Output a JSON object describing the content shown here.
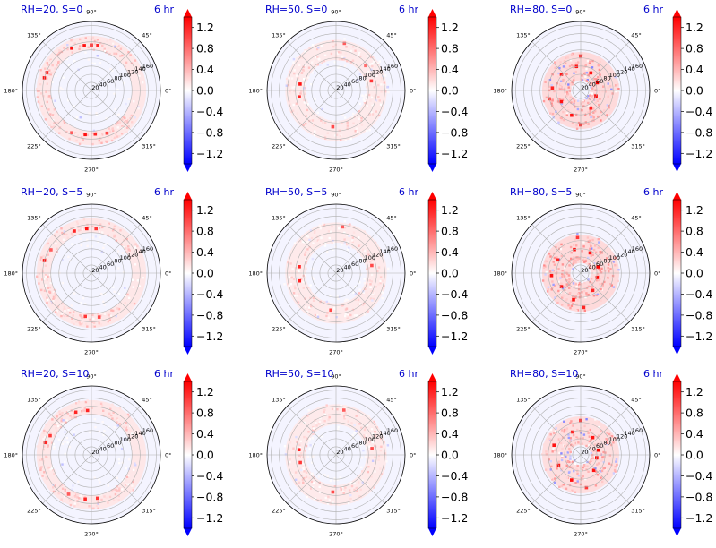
{
  "colors": {
    "cmap": "bwr",
    "negative": "#0000ff",
    "zero": "#ffffff",
    "positive": "#ff0000",
    "title": "#0000cc",
    "axis_line": "#000000",
    "grid": "#b0b0b0"
  },
  "chart_data": [
    {
      "type": "heatmap",
      "projection": "polar",
      "title_left": "RH=20, S=0",
      "title_right": "6 hr",
      "theta_ticks": [
        "90°",
        "45°",
        "0°",
        "315°",
        "270°",
        "225°",
        "180°",
        "135°"
      ],
      "r_ticks": [
        "20",
        "40",
        "60",
        "80",
        "100",
        "120",
        "140",
        "160"
      ],
      "rlim": [
        0,
        170
      ],
      "colorbar": {
        "vmin": -1.4,
        "vmax": 1.4,
        "ticks": [
          "1.2",
          "0.8",
          "0.4",
          "0.0",
          "−0.4",
          "−0.8",
          "−1.2"
        ],
        "extend": "both"
      },
      "hotspots": [
        {
          "theta": 115,
          "r": 115,
          "v": 1.3
        },
        {
          "theta": 99,
          "r": 112,
          "v": 1.3
        },
        {
          "theta": 90,
          "r": 112,
          "v": 1.2
        },
        {
          "theta": 82,
          "r": 112,
          "v": 1.2
        },
        {
          "theta": 165,
          "r": 120,
          "v": 1.3
        },
        {
          "theta": 158,
          "r": 118,
          "v": 1.2
        },
        {
          "theta": 262,
          "r": 110,
          "v": 1.3
        },
        {
          "theta": 275,
          "r": 108,
          "v": 1.2
        },
        {
          "theta": 290,
          "r": 112,
          "v": 1.0
        },
        {
          "theta": 245,
          "r": 115,
          "v": 0.9
        }
      ],
      "ring": {
        "r_min": 100,
        "r_max": 135,
        "theta_from": 30,
        "theta_to": 330,
        "level": 0.35,
        "density": 0.5
      },
      "cool": {
        "r_min": 55,
        "r_max": 130,
        "level": -0.25,
        "density": 0.04
      }
    },
    {
      "type": "heatmap",
      "projection": "polar",
      "title_left": "RH=50, S=0",
      "title_right": "6 hr",
      "theta_ticks": [
        "90°",
        "45°",
        "0°",
        "315°",
        "270°",
        "225°",
        "180°",
        "135°"
      ],
      "r_ticks": [
        "20",
        "40",
        "60",
        "80",
        "100",
        "120",
        "140",
        "160"
      ],
      "rlim": [
        0,
        170
      ],
      "colorbar": {
        "vmin": -1.4,
        "vmax": 1.4,
        "ticks": [
          "1.2",
          "0.8",
          "0.4",
          "0.0",
          "−0.4",
          "−0.8",
          "−1.2"
        ],
        "extend": "both"
      },
      "hotspots": [
        {
          "theta": 170,
          "r": 90,
          "v": 1.3
        },
        {
          "theta": 190,
          "r": 92,
          "v": 1.2
        },
        {
          "theta": 15,
          "r": 90,
          "v": 1.1
        },
        {
          "theta": 265,
          "r": 90,
          "v": 1.0
        },
        {
          "theta": 80,
          "r": 118,
          "v": 0.9
        },
        {
          "theta": 40,
          "r": 95,
          "v": 0.8
        }
      ],
      "ring": {
        "r_min": 75,
        "r_max": 125,
        "theta_from": 0,
        "theta_to": 360,
        "level": 0.3,
        "density": 0.35
      },
      "cool": {
        "r_min": 55,
        "r_max": 130,
        "level": -0.2,
        "density": 0.03
      }
    },
    {
      "type": "heatmap",
      "projection": "polar",
      "title_left": "RH=80, S=0",
      "title_right": "6 hr",
      "theta_ticks": [
        "90°",
        "45°",
        "0°",
        "315°",
        "270°",
        "225°",
        "180°",
        "135°"
      ],
      "r_ticks": [
        "20",
        "40",
        "60",
        "80",
        "100",
        "120",
        "140",
        "160"
      ],
      "rlim": [
        0,
        170
      ],
      "colorbar": {
        "vmin": -1.4,
        "vmax": 1.4,
        "ticks": [
          "1.2",
          "0.8",
          "0.4",
          "0.0",
          "−0.4",
          "−0.8",
          "−1.2"
        ],
        "extend": "both"
      },
      "hotspots": [
        {
          "theta": 25,
          "r": 45,
          "v": 1.4
        },
        {
          "theta": 60,
          "r": 50,
          "v": 1.3
        },
        {
          "theta": 100,
          "r": 60,
          "v": 1.3
        },
        {
          "theta": 140,
          "r": 62,
          "v": 1.3
        },
        {
          "theta": 175,
          "r": 70,
          "v": 1.2
        },
        {
          "theta": 210,
          "r": 55,
          "v": 1.3
        },
        {
          "theta": 250,
          "r": 65,
          "v": 1.3
        },
        {
          "theta": 300,
          "r": 50,
          "v": 1.2
        },
        {
          "theta": 340,
          "r": 40,
          "v": 1.4
        },
        {
          "theta": 90,
          "r": 85,
          "v": 1.2
        },
        {
          "theta": 195,
          "r": 80,
          "v": 1.1
        },
        {
          "theta": 270,
          "r": 85,
          "v": 1.2
        }
      ],
      "ring": {
        "r_min": 25,
        "r_max": 95,
        "theta_from": 0,
        "theta_to": 360,
        "level": 0.55,
        "density": 0.6
      },
      "cool": {
        "r_min": 20,
        "r_max": 100,
        "level": -0.45,
        "density": 0.15
      }
    },
    {
      "type": "heatmap",
      "projection": "polar",
      "title_left": "RH=20, S=5",
      "title_right": "6 hr",
      "theta_ticks": [
        "90°",
        "45°",
        "0°",
        "315°",
        "270°",
        "225°",
        "180°",
        "135°"
      ],
      "r_ticks": [
        "20",
        "40",
        "60",
        "80",
        "100",
        "120",
        "140",
        "160"
      ],
      "rlim": [
        0,
        170
      ],
      "colorbar": {
        "vmin": -1.4,
        "vmax": 1.4,
        "ticks": [
          "1.2",
          "0.8",
          "0.4",
          "0.0",
          "−0.4",
          "−0.8",
          "−1.2"
        ],
        "extend": "both"
      },
      "hotspots": [
        {
          "theta": 112,
          "r": 112,
          "v": 1.2
        },
        {
          "theta": 96,
          "r": 110,
          "v": 1.3
        },
        {
          "theta": 84,
          "r": 110,
          "v": 1.1
        },
        {
          "theta": 165,
          "r": 120,
          "v": 1.3
        },
        {
          "theta": 262,
          "r": 108,
          "v": 1.1
        },
        {
          "theta": 280,
          "r": 110,
          "v": 1.0
        },
        {
          "theta": 150,
          "r": 115,
          "v": 0.9
        }
      ],
      "ring": {
        "r_min": 100,
        "r_max": 135,
        "theta_from": 30,
        "theta_to": 330,
        "level": 0.35,
        "density": 0.45
      },
      "cool": {
        "r_min": 55,
        "r_max": 130,
        "level": -0.25,
        "density": 0.04
      }
    },
    {
      "type": "heatmap",
      "projection": "polar",
      "title_left": "RH=50, S=5",
      "title_right": "6 hr",
      "theta_ticks": [
        "90°",
        "45°",
        "0°",
        "315°",
        "270°",
        "225°",
        "180°",
        "135°"
      ],
      "r_ticks": [
        "20",
        "40",
        "60",
        "80",
        "100",
        "120",
        "140",
        "160"
      ],
      "rlim": [
        0,
        170
      ],
      "colorbar": {
        "vmin": -1.4,
        "vmax": 1.4,
        "ticks": [
          "1.2",
          "0.8",
          "0.4",
          "0.0",
          "−0.4",
          "−0.8",
          "−1.2"
        ],
        "extend": "both"
      },
      "hotspots": [
        {
          "theta": 170,
          "r": 92,
          "v": 1.2
        },
        {
          "theta": 192,
          "r": 92,
          "v": 1.2
        },
        {
          "theta": 12,
          "r": 90,
          "v": 1.0
        },
        {
          "theta": 262,
          "r": 92,
          "v": 1.0
        },
        {
          "theta": 82,
          "r": 115,
          "v": 0.9
        }
      ],
      "ring": {
        "r_min": 75,
        "r_max": 125,
        "theta_from": 0,
        "theta_to": 360,
        "level": 0.3,
        "density": 0.35
      },
      "cool": {
        "r_min": 55,
        "r_max": 130,
        "level": -0.2,
        "density": 0.03
      }
    },
    {
      "type": "heatmap",
      "projection": "polar",
      "title_left": "RH=80, S=5",
      "title_right": "6 hr",
      "theta_ticks": [
        "90°",
        "45°",
        "0°",
        "315°",
        "270°",
        "225°",
        "180°",
        "135°"
      ],
      "r_ticks": [
        "20",
        "40",
        "60",
        "80",
        "100",
        "120",
        "140",
        "160"
      ],
      "rlim": [
        0,
        170
      ],
      "colorbar": {
        "vmin": -1.4,
        "vmax": 1.4,
        "ticks": [
          "1.2",
          "0.8",
          "0.4",
          "0.0",
          "−0.4",
          "−0.8",
          "−1.2"
        ],
        "extend": "both"
      },
      "hotspots": [
        {
          "theta": 20,
          "r": 45,
          "v": 1.4
        },
        {
          "theta": 65,
          "r": 55,
          "v": 1.3
        },
        {
          "theta": 105,
          "r": 60,
          "v": 1.3
        },
        {
          "theta": 150,
          "r": 65,
          "v": 1.2
        },
        {
          "theta": 185,
          "r": 72,
          "v": 1.3
        },
        {
          "theta": 215,
          "r": 58,
          "v": 1.3
        },
        {
          "theta": 255,
          "r": 68,
          "v": 1.3
        },
        {
          "theta": 305,
          "r": 52,
          "v": 1.2
        },
        {
          "theta": 345,
          "r": 42,
          "v": 1.4
        },
        {
          "theta": 95,
          "r": 88,
          "v": 1.1
        },
        {
          "theta": 275,
          "r": 85,
          "v": 1.2
        }
      ],
      "ring": {
        "r_min": 25,
        "r_max": 95,
        "theta_from": 0,
        "theta_to": 360,
        "level": 0.55,
        "density": 0.6
      },
      "cool": {
        "r_min": 20,
        "r_max": 100,
        "level": -0.45,
        "density": 0.14
      }
    },
    {
      "type": "heatmap",
      "projection": "polar",
      "title_left": "RH=20, S=10",
      "title_right": "6 hr",
      "theta_ticks": [
        "90°",
        "45°",
        "0°",
        "315°",
        "270°",
        "225°",
        "180°",
        "135°"
      ],
      "r_ticks": [
        "20",
        "40",
        "60",
        "80",
        "100",
        "120",
        "140",
        "160"
      ],
      "rlim": [
        0,
        170
      ],
      "colorbar": {
        "vmin": -1.4,
        "vmax": 1.4,
        "ticks": [
          "1.2",
          "0.8",
          "0.4",
          "0.0",
          "−0.4",
          "−0.8",
          "−1.2"
        ],
        "extend": "both"
      },
      "hotspots": [
        {
          "theta": 110,
          "r": 112,
          "v": 1.2
        },
        {
          "theta": 95,
          "r": 110,
          "v": 1.2
        },
        {
          "theta": 165,
          "r": 118,
          "v": 1.2
        },
        {
          "theta": 155,
          "r": 112,
          "v": 1.1
        },
        {
          "theta": 262,
          "r": 110,
          "v": 1.2
        },
        {
          "theta": 278,
          "r": 108,
          "v": 1.1
        },
        {
          "theta": 240,
          "r": 112,
          "v": 0.9
        }
      ],
      "ring": {
        "r_min": 100,
        "r_max": 135,
        "theta_from": 30,
        "theta_to": 330,
        "level": 0.35,
        "density": 0.45
      },
      "cool": {
        "r_min": 55,
        "r_max": 130,
        "level": -0.25,
        "density": 0.04
      }
    },
    {
      "type": "heatmap",
      "projection": "polar",
      "title_left": "RH=50, S=10",
      "title_right": "6 hr",
      "theta_ticks": [
        "90°",
        "45°",
        "0°",
        "315°",
        "270°",
        "225°",
        "180°",
        "135°"
      ],
      "r_ticks": [
        "20",
        "40",
        "60",
        "80",
        "100",
        "120",
        "140",
        "160"
      ],
      "rlim": [
        0,
        170
      ],
      "colorbar": {
        "vmin": -1.4,
        "vmax": 1.4,
        "ticks": [
          "1.2",
          "0.8",
          "0.4",
          "0.0",
          "−0.4",
          "−0.8",
          "−1.2"
        ],
        "extend": "both"
      },
      "hotspots": [
        {
          "theta": 172,
          "r": 92,
          "v": 1.2
        },
        {
          "theta": 192,
          "r": 90,
          "v": 1.1
        },
        {
          "theta": 10,
          "r": 90,
          "v": 1.0
        },
        {
          "theta": 265,
          "r": 92,
          "v": 1.0
        },
        {
          "theta": 80,
          "r": 112,
          "v": 0.9
        }
      ],
      "ring": {
        "r_min": 75,
        "r_max": 125,
        "theta_from": 0,
        "theta_to": 360,
        "level": 0.3,
        "density": 0.35
      },
      "cool": {
        "r_min": 55,
        "r_max": 130,
        "level": -0.2,
        "density": 0.03
      }
    },
    {
      "type": "heatmap",
      "projection": "polar",
      "title_left": "RH=80, S=10",
      "title_right": "6 hr",
      "theta_ticks": [
        "90°",
        "45°",
        "0°",
        "315°",
        "270°",
        "225°",
        "180°",
        "135°"
      ],
      "r_ticks": [
        "20",
        "40",
        "60",
        "80",
        "100",
        "120",
        "140",
        "160"
      ],
      "rlim": [
        0,
        170
      ],
      "colorbar": {
        "vmin": -1.4,
        "vmax": 1.4,
        "ticks": [
          "1.2",
          "0.8",
          "0.4",
          "0.0",
          "−0.4",
          "−0.8",
          "−1.2"
        ],
        "extend": "both"
      },
      "hotspots": [
        {
          "theta": 15,
          "r": 45,
          "v": 1.4
        },
        {
          "theta": 55,
          "r": 52,
          "v": 1.3
        },
        {
          "theta": 110,
          "r": 60,
          "v": 1.2
        },
        {
          "theta": 160,
          "r": 70,
          "v": 1.3
        },
        {
          "theta": 205,
          "r": 60,
          "v": 1.3
        },
        {
          "theta": 250,
          "r": 66,
          "v": 1.3
        },
        {
          "theta": 310,
          "r": 50,
          "v": 1.3
        },
        {
          "theta": 350,
          "r": 40,
          "v": 1.4
        },
        {
          "theta": 90,
          "r": 85,
          "v": 1.2
        },
        {
          "theta": 280,
          "r": 82,
          "v": 1.1
        }
      ],
      "ring": {
        "r_min": 25,
        "r_max": 95,
        "theta_from": 0,
        "theta_to": 360,
        "level": 0.5,
        "density": 0.55
      },
      "cool": {
        "r_min": 20,
        "r_max": 100,
        "level": -0.45,
        "density": 0.16
      }
    }
  ]
}
